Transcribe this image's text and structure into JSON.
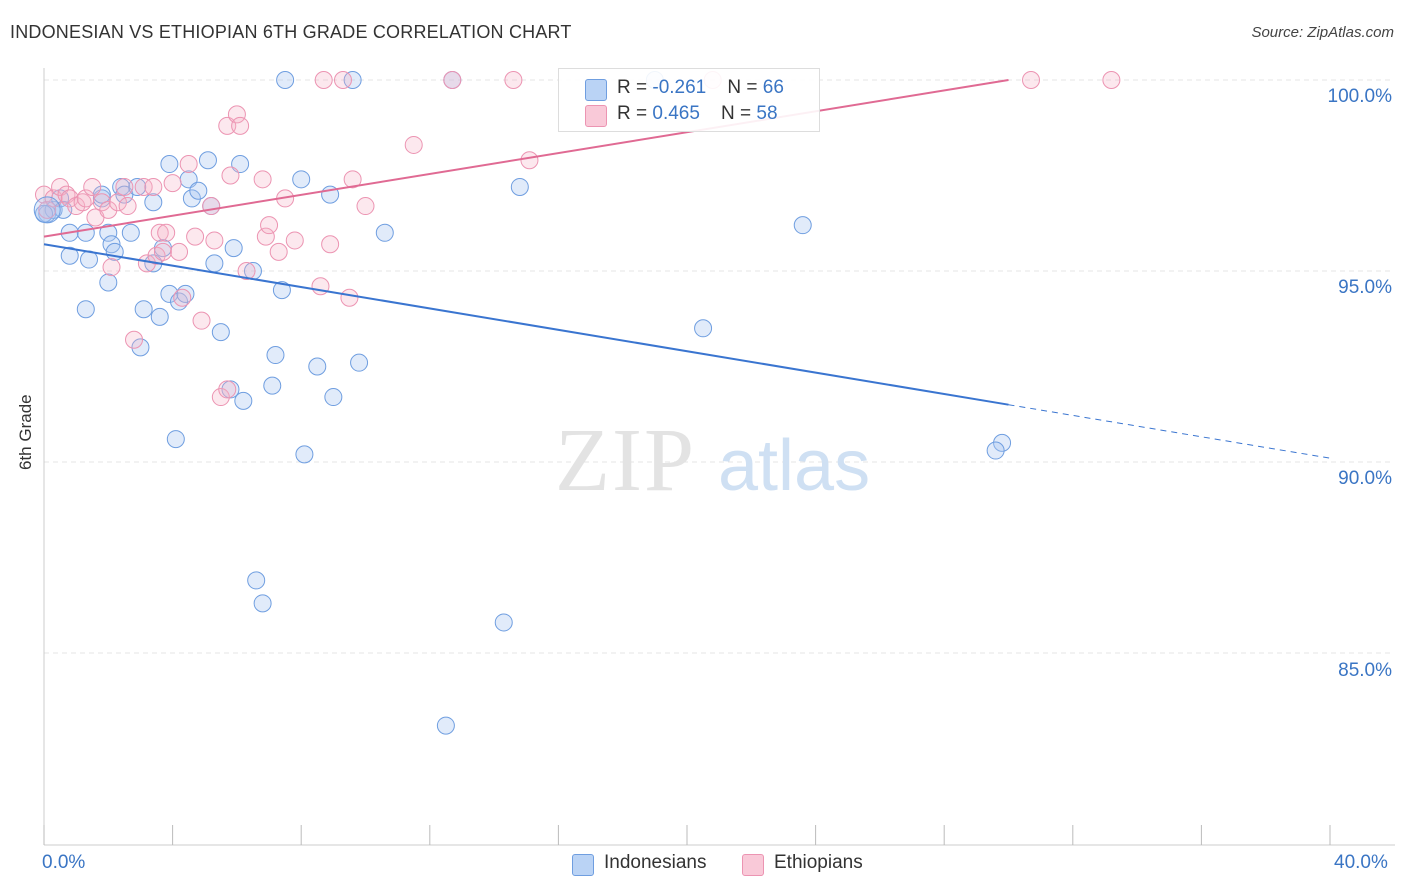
{
  "title": "INDONESIAN VS ETHIOPIAN 6TH GRADE CORRELATION CHART",
  "source": "Source: ZipAtlas.com",
  "watermark": {
    "zip": "ZIP",
    "atlas": "atlas"
  },
  "legend_stats": [
    {
      "r_label": "R = ",
      "r_value": "-0.261",
      "n_label": "N = ",
      "n_value": "66"
    },
    {
      "r_label": "R = ",
      "r_value": " 0.465",
      "n_label": "N = ",
      "n_value": "58"
    }
  ],
  "chart_data": {
    "type": "scatter",
    "title": "INDONESIAN VS ETHIOPIAN 6TH GRADE CORRELATION CHART",
    "xlabel": "",
    "ylabel": "6th Grade",
    "xlim": [
      0,
      40
    ],
    "ylim": [
      80,
      101
    ],
    "x_tick_labels": [
      "0.0%",
      "40.0%"
    ],
    "y_ticks": [
      100,
      95,
      90,
      85
    ],
    "y_tick_labels": [
      "100.0%",
      "95.0%",
      "90.0%",
      "85.0%"
    ],
    "grid": true,
    "legend_position": "bottom",
    "colors": {
      "blue": "#a9c7f0",
      "blue_line": "#3a75d0",
      "pink": "#f5b3c8",
      "pink_line": "#e06a93",
      "axis_text": "#3a75c4"
    },
    "series": [
      {
        "name": "Indonesians",
        "color": "#a9c7f0",
        "trend": {
          "x": [
            0,
            30
          ],
          "y": [
            95.7,
            91.5
          ],
          "dashed_to": [
            40,
            90.1
          ]
        },
        "points": [
          [
            0.1,
            96.5
          ],
          [
            0.3,
            96.6
          ],
          [
            0.5,
            96.9
          ],
          [
            0.6,
            96.6
          ],
          [
            0.8,
            96.0
          ],
          [
            0.8,
            95.4
          ],
          [
            1.3,
            96.0
          ],
          [
            1.4,
            95.3
          ],
          [
            1.3,
            94.0
          ],
          [
            1.8,
            96.9
          ],
          [
            2.0,
            96.0
          ],
          [
            2.0,
            94.7
          ],
          [
            2.1,
            95.7
          ],
          [
            2.2,
            95.5
          ],
          [
            2.4,
            97.2
          ],
          [
            2.5,
            97.0
          ],
          [
            2.7,
            96.0
          ],
          [
            2.9,
            97.2
          ],
          [
            3.0,
            93.0
          ],
          [
            3.1,
            94.0
          ],
          [
            3.4,
            95.2
          ],
          [
            3.4,
            96.8
          ],
          [
            3.6,
            93.8
          ],
          [
            3.7,
            95.6
          ],
          [
            3.9,
            94.4
          ],
          [
            3.9,
            97.8
          ],
          [
            4.2,
            94.2
          ],
          [
            4.4,
            94.4
          ],
          [
            4.5,
            97.4
          ],
          [
            4.6,
            96.9
          ],
          [
            4.8,
            97.1
          ],
          [
            5.1,
            97.9
          ],
          [
            5.2,
            96.7
          ],
          [
            5.3,
            95.2
          ],
          [
            5.5,
            93.4
          ],
          [
            5.8,
            91.9
          ],
          [
            5.9,
            95.6
          ],
          [
            6.1,
            97.8
          ],
          [
            6.2,
            91.6
          ],
          [
            6.5,
            95.0
          ],
          [
            6.6,
            86.9
          ],
          [
            6.8,
            86.3
          ],
          [
            7.1,
            92.0
          ],
          [
            7.2,
            92.8
          ],
          [
            7.4,
            94.5
          ],
          [
            7.5,
            100.0
          ],
          [
            8.0,
            97.4
          ],
          [
            8.1,
            90.2
          ],
          [
            8.5,
            92.5
          ],
          [
            8.9,
            97.0
          ],
          [
            9.0,
            91.7
          ],
          [
            9.6,
            100.0
          ],
          [
            9.8,
            92.6
          ],
          [
            10.6,
            96.0
          ],
          [
            12.7,
            100.0
          ],
          [
            14.3,
            85.8
          ],
          [
            14.8,
            97.2
          ],
          [
            19.0,
            100.0
          ],
          [
            20.5,
            93.5
          ],
          [
            23.6,
            96.2
          ],
          [
            29.8,
            90.5
          ],
          [
            29.6,
            90.3
          ],
          [
            12.5,
            83.1
          ],
          [
            4.1,
            90.6
          ],
          [
            0.0,
            96.5
          ],
          [
            1.8,
            97.0
          ]
        ]
      },
      {
        "name": "Ethiopians",
        "color": "#f5b3c8",
        "trend": {
          "x": [
            0,
            30
          ],
          "y": [
            95.9,
            100.0
          ]
        },
        "points": [
          [
            0.0,
            97.0
          ],
          [
            0.1,
            96.6
          ],
          [
            0.3,
            96.9
          ],
          [
            0.5,
            97.2
          ],
          [
            0.7,
            97.0
          ],
          [
            0.8,
            96.9
          ],
          [
            1.0,
            96.7
          ],
          [
            1.2,
            96.8
          ],
          [
            1.3,
            96.9
          ],
          [
            1.5,
            97.2
          ],
          [
            1.6,
            96.4
          ],
          [
            1.8,
            96.8
          ],
          [
            2.0,
            96.6
          ],
          [
            2.1,
            95.1
          ],
          [
            2.3,
            96.8
          ],
          [
            2.5,
            97.2
          ],
          [
            2.6,
            96.7
          ],
          [
            2.8,
            93.2
          ],
          [
            3.1,
            97.2
          ],
          [
            3.2,
            95.2
          ],
          [
            3.4,
            97.2
          ],
          [
            3.5,
            95.4
          ],
          [
            3.6,
            96.0
          ],
          [
            3.7,
            95.5
          ],
          [
            3.8,
            96.0
          ],
          [
            4.0,
            97.3
          ],
          [
            4.2,
            95.5
          ],
          [
            4.3,
            94.3
          ],
          [
            4.5,
            97.8
          ],
          [
            4.7,
            95.9
          ],
          [
            4.9,
            93.7
          ],
          [
            5.2,
            96.7
          ],
          [
            5.3,
            95.8
          ],
          [
            5.5,
            91.7
          ],
          [
            5.7,
            91.9
          ],
          [
            5.7,
            98.8
          ],
          [
            5.8,
            97.5
          ],
          [
            6.0,
            99.1
          ],
          [
            6.1,
            98.8
          ],
          [
            6.3,
            95.0
          ],
          [
            6.8,
            97.4
          ],
          [
            6.9,
            95.9
          ],
          [
            7.0,
            96.2
          ],
          [
            7.3,
            95.5
          ],
          [
            7.5,
            96.9
          ],
          [
            7.8,
            95.8
          ],
          [
            8.6,
            94.6
          ],
          [
            8.7,
            100.0
          ],
          [
            8.9,
            95.7
          ],
          [
            9.3,
            100.0
          ],
          [
            9.5,
            94.3
          ],
          [
            9.6,
            97.4
          ],
          [
            10.0,
            96.7
          ],
          [
            11.5,
            98.3
          ],
          [
            12.7,
            100.0
          ],
          [
            14.6,
            100.0
          ],
          [
            15.1,
            97.9
          ],
          [
            30.7,
            100.0
          ]
        ],
        "extra_points": [
          [
            20.8,
            100.0
          ],
          [
            33.2,
            100.0
          ]
        ]
      }
    ]
  }
}
